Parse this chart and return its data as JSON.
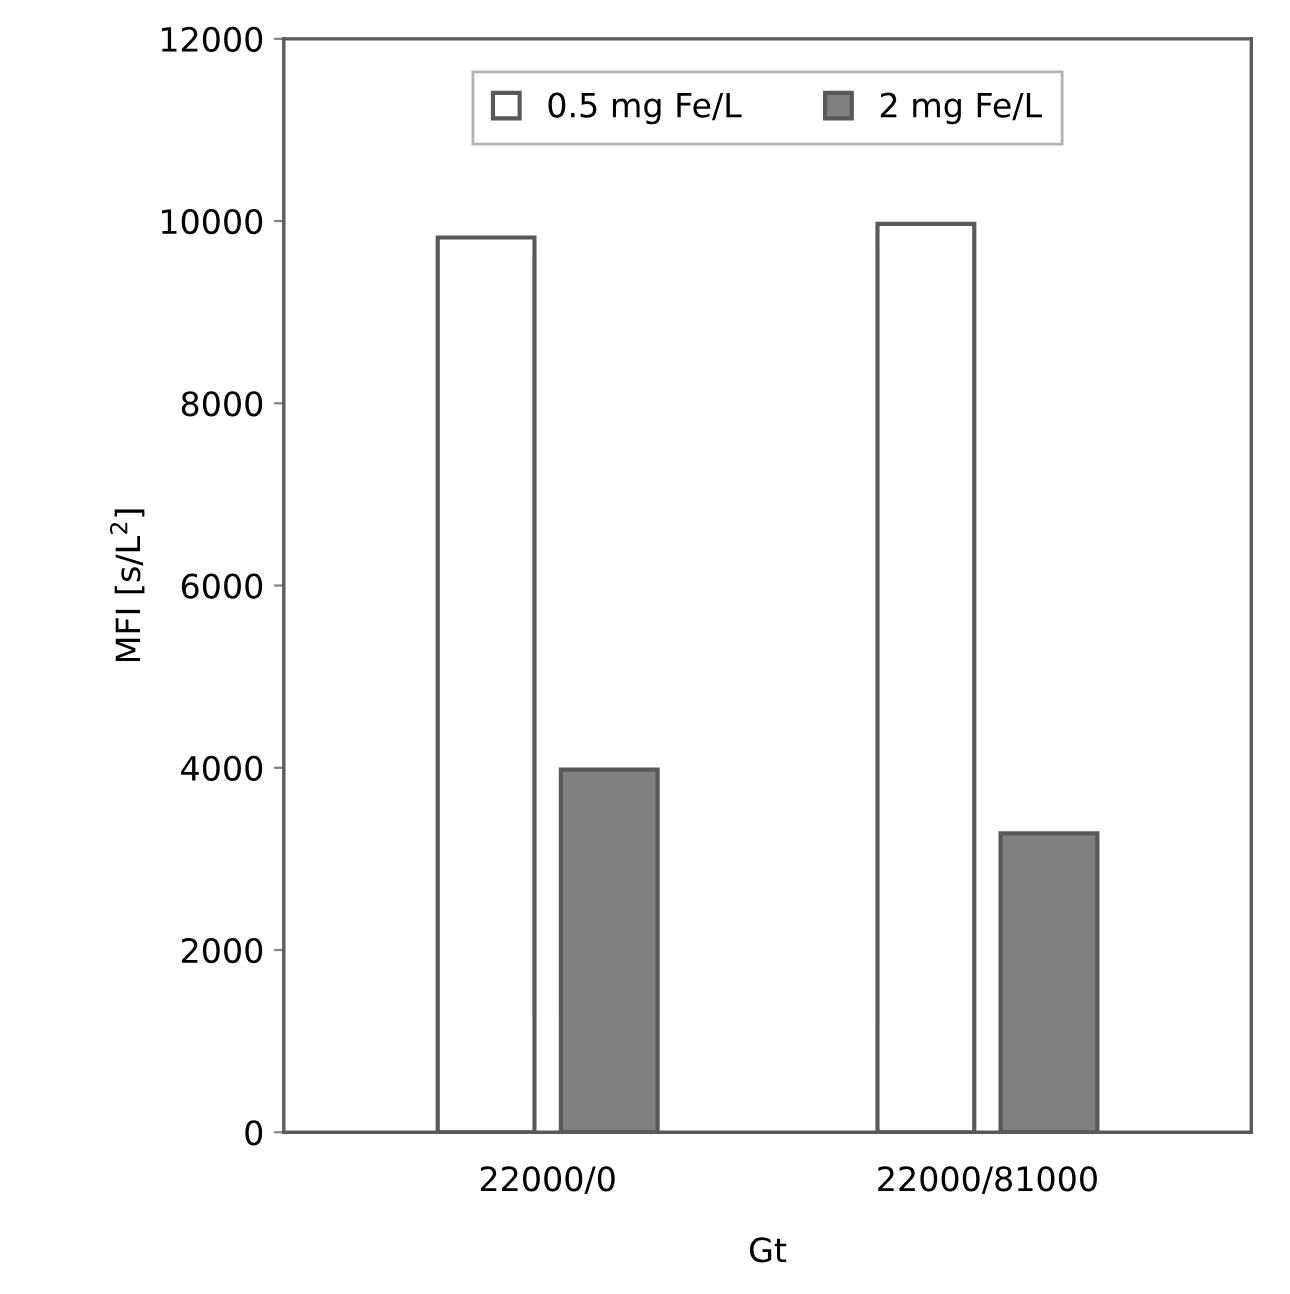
{
  "chart_data": {
    "type": "bar",
    "xlabel": "Gt",
    "ylabel": "MFI [s/L$^{2}$]",
    "categories": [
      "22000/0",
      "22000/81000"
    ],
    "series": [
      {
        "name": "0.5 mg Fe/L",
        "color": "#ffffff",
        "values": [
          9820,
          9970
        ]
      },
      {
        "name": "2 mg Fe/L",
        "color": "#808080",
        "values": [
          3980,
          3280
        ]
      }
    ],
    "ylim": [
      0,
      12000
    ],
    "yticks": [
      0,
      2000,
      4000,
      6000,
      8000,
      10000,
      12000
    ],
    "grid": false,
    "legend": "top"
  }
}
